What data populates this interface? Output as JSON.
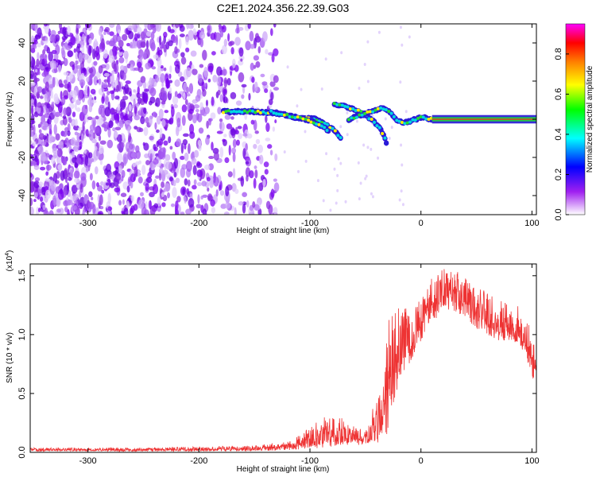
{
  "figure": {
    "title": "C2E1.2024.356.22.39.G03"
  },
  "chart_data": [
    {
      "type": "heatmap",
      "xlabel": "Height of straight line (km)",
      "ylabel": "Frequency (Hz)",
      "xlim": [
        -352,
        104
      ],
      "ylim": [
        -50,
        50
      ],
      "x_ticks": [
        "-300",
        "-200",
        "-100",
        "0",
        "100"
      ],
      "x_tick_values": [
        -300,
        -200,
        -100,
        0,
        100
      ],
      "y_ticks": [
        "-40",
        "-20",
        "0",
        "20",
        "40"
      ],
      "y_tick_values": [
        -40,
        -20,
        0,
        20,
        40
      ],
      "colorbar": {
        "label": "Normalized spectral amplitude",
        "range": [
          0,
          0.95
        ],
        "ticks": [
          "0.0",
          "0.2",
          "0.4",
          "0.6",
          "0.8"
        ],
        "tick_values": [
          0.0,
          0.2,
          0.4,
          0.6,
          0.8
        ],
        "colors": [
          "#ffffff",
          "#a020f0",
          "#0000ff",
          "#00ffff",
          "#00ff00",
          "#ffff00",
          "#ff8000",
          "#ff0000",
          "#ff00ff"
        ]
      },
      "noise_region_x": [
        -352,
        -130
      ],
      "signal_tracks": [
        {
          "x": [
            -178,
            -150,
            -130,
            -110,
            -95,
            -85,
            -78,
            -72
          ],
          "y": [
            4,
            4,
            3,
            1,
            0,
            -3,
            -6,
            -10
          ]
        },
        {
          "x": [
            -135,
            -120,
            -105,
            -95,
            -88,
            -83
          ],
          "y": [
            4,
            2,
            0,
            -2,
            -4,
            -6
          ]
        },
        {
          "x": [
            -78,
            -65,
            -55,
            -45,
            -38,
            -33,
            -30
          ],
          "y": [
            8,
            6,
            4,
            0,
            -4,
            -9,
            -15
          ]
        },
        {
          "x": [
            -65,
            -55,
            -45,
            -35,
            -28,
            -22,
            -15,
            -5,
            0,
            10
          ],
          "y": [
            0,
            2,
            4,
            6,
            4,
            0,
            -2,
            0,
            1,
            0
          ]
        },
        {
          "x": [
            10,
            30,
            60,
            100,
            104
          ],
          "y": [
            0,
            0,
            0,
            0,
            0
          ]
        }
      ]
    },
    {
      "type": "line",
      "xlabel": "Height of straight line (km)",
      "ylabel": "SNR (10 * v/v)",
      "y_scale_label": "(x10",
      "y_scale_exp": "4",
      "y_scale_close": ")",
      "xlim": [
        -352,
        104
      ],
      "ylim": [
        0,
        1.6
      ],
      "x_ticks": [
        "-300",
        "-200",
        "-100",
        "0",
        "100"
      ],
      "x_tick_values": [
        -300,
        -200,
        -100,
        0,
        100
      ],
      "y_ticks": [
        "0.0",
        "0.5",
        "1.0",
        "1.5"
      ],
      "y_tick_values": [
        0.0,
        0.5,
        1.0,
        1.5
      ],
      "series_color": "#ee3333",
      "envelope": {
        "x": [
          -352,
          -300,
          -250,
          -200,
          -150,
          -120,
          -100,
          -90,
          -80,
          -70,
          -60,
          -50,
          -45,
          -40,
          -35,
          -30,
          -25,
          -20,
          -15,
          -10,
          -5,
          0,
          10,
          20,
          30,
          40,
          50,
          60,
          70,
          80,
          90,
          95,
          100,
          104
        ],
        "lo": [
          0.01,
          0.01,
          0.01,
          0.01,
          0.01,
          0.02,
          0.03,
          0.04,
          0.05,
          0.06,
          0.06,
          0.06,
          0.06,
          0.08,
          0.1,
          0.15,
          0.35,
          0.6,
          0.7,
          0.75,
          0.85,
          0.95,
          1.1,
          1.2,
          1.2,
          1.15,
          1.05,
          1.0,
          0.95,
          0.95,
          0.9,
          0.8,
          0.6,
          0.7
        ],
        "hi": [
          0.04,
          0.04,
          0.04,
          0.05,
          0.06,
          0.1,
          0.22,
          0.3,
          0.36,
          0.28,
          0.22,
          0.18,
          0.3,
          0.55,
          0.7,
          1.1,
          1.35,
          1.3,
          1.35,
          1.2,
          1.25,
          1.35,
          1.5,
          1.58,
          1.56,
          1.5,
          1.42,
          1.38,
          1.3,
          1.3,
          1.22,
          1.2,
          1.1,
          0.8
        ]
      }
    }
  ]
}
